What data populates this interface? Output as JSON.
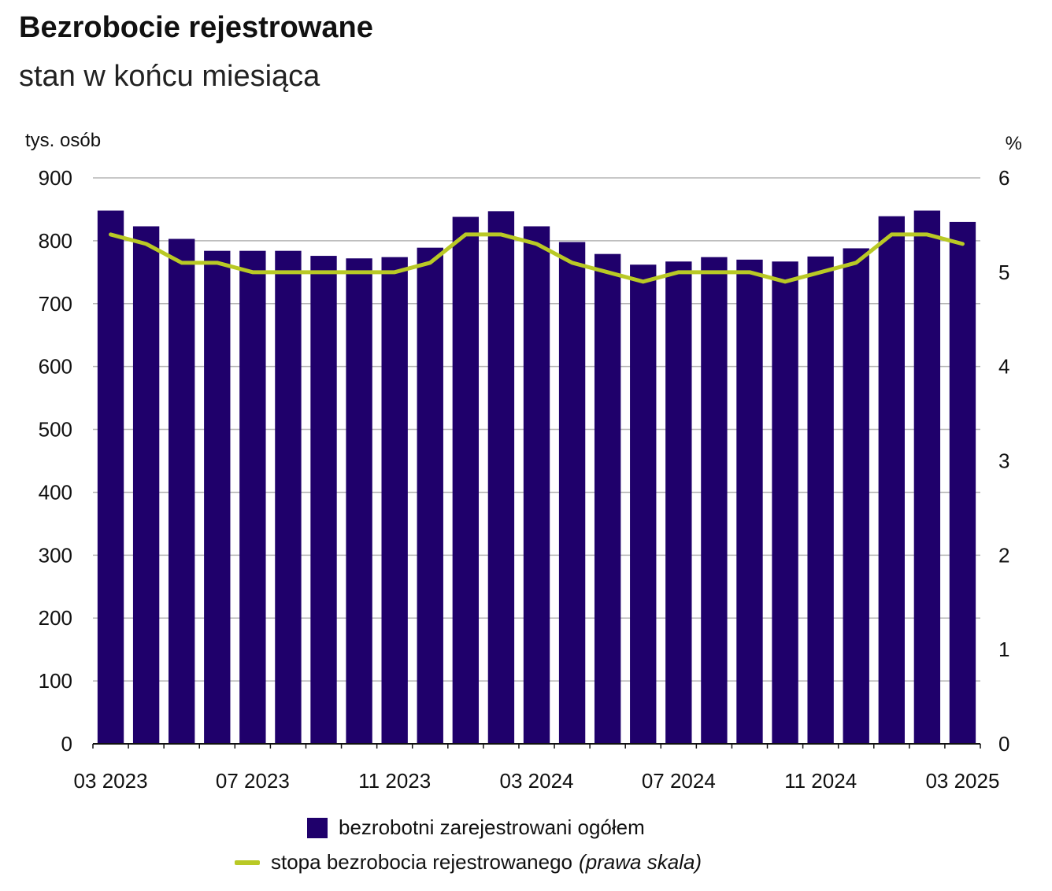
{
  "title": "Bezrobocie rejestrowane",
  "subtitle": "stan w końcu miesiąca",
  "colors": {
    "bars": "#1f006b",
    "line": "#b9c925",
    "grid": "#b5b5b5",
    "axis": "#111111"
  },
  "chart_data": {
    "type": "bar",
    "categories": [
      "03 2023",
      "04 2023",
      "05 2023",
      "06 2023",
      "07 2023",
      "08 2023",
      "09 2023",
      "10 2023",
      "11 2023",
      "12 2023",
      "01 2024",
      "02 2024",
      "03 2024",
      "04 2024",
      "05 2024",
      "06 2024",
      "07 2024",
      "08 2024",
      "09 2024",
      "10 2024",
      "11 2024",
      "12 2024",
      "01 2025",
      "02 2025",
      "03 2025"
    ],
    "x_tick_labels": [
      "03 2023",
      "07 2023",
      "11 2023",
      "03 2024",
      "07 2024",
      "11 2024",
      "03 2025"
    ],
    "x_tick_indices": [
      0,
      4,
      8,
      12,
      16,
      20,
      24
    ],
    "series": [
      {
        "name": "bezrobotni zarejestrowani ogółem",
        "type": "bar",
        "axis": "left",
        "values": [
          848,
          823,
          803,
          784,
          784,
          784,
          776,
          772,
          774,
          789,
          838,
          847,
          823,
          798,
          779,
          762,
          767,
          774,
          770,
          767,
          775,
          788,
          839,
          848,
          830
        ]
      },
      {
        "name": "stopa bezrobocia rejestrowanego",
        "type": "line",
        "axis": "right",
        "values": [
          5.4,
          5.3,
          5.1,
          5.1,
          5.0,
          5.0,
          5.0,
          5.0,
          5.0,
          5.1,
          5.4,
          5.4,
          5.3,
          5.1,
          5.0,
          4.9,
          5.0,
          5.0,
          5.0,
          4.9,
          5.0,
          5.1,
          5.4,
          5.4,
          5.3
        ]
      }
    ],
    "y_left": {
      "label": "tys. osób",
      "ylim": [
        0,
        900
      ],
      "ticks": [
        "0",
        "100",
        "200",
        "300",
        "400",
        "500",
        "600",
        "700",
        "800",
        "900"
      ]
    },
    "y_right": {
      "label": "%",
      "ylim": [
        0,
        6
      ],
      "ticks": [
        "0",
        "1",
        "2",
        "3",
        "4",
        "5",
        "6"
      ]
    },
    "grid": true,
    "legend_position": "bottom-center"
  },
  "legend": {
    "bars_label": "bezrobotni zarejestrowani ogółem",
    "line_label": "stopa bezrobocia rejestrowanego",
    "line_note": "(prawa skala)"
  }
}
